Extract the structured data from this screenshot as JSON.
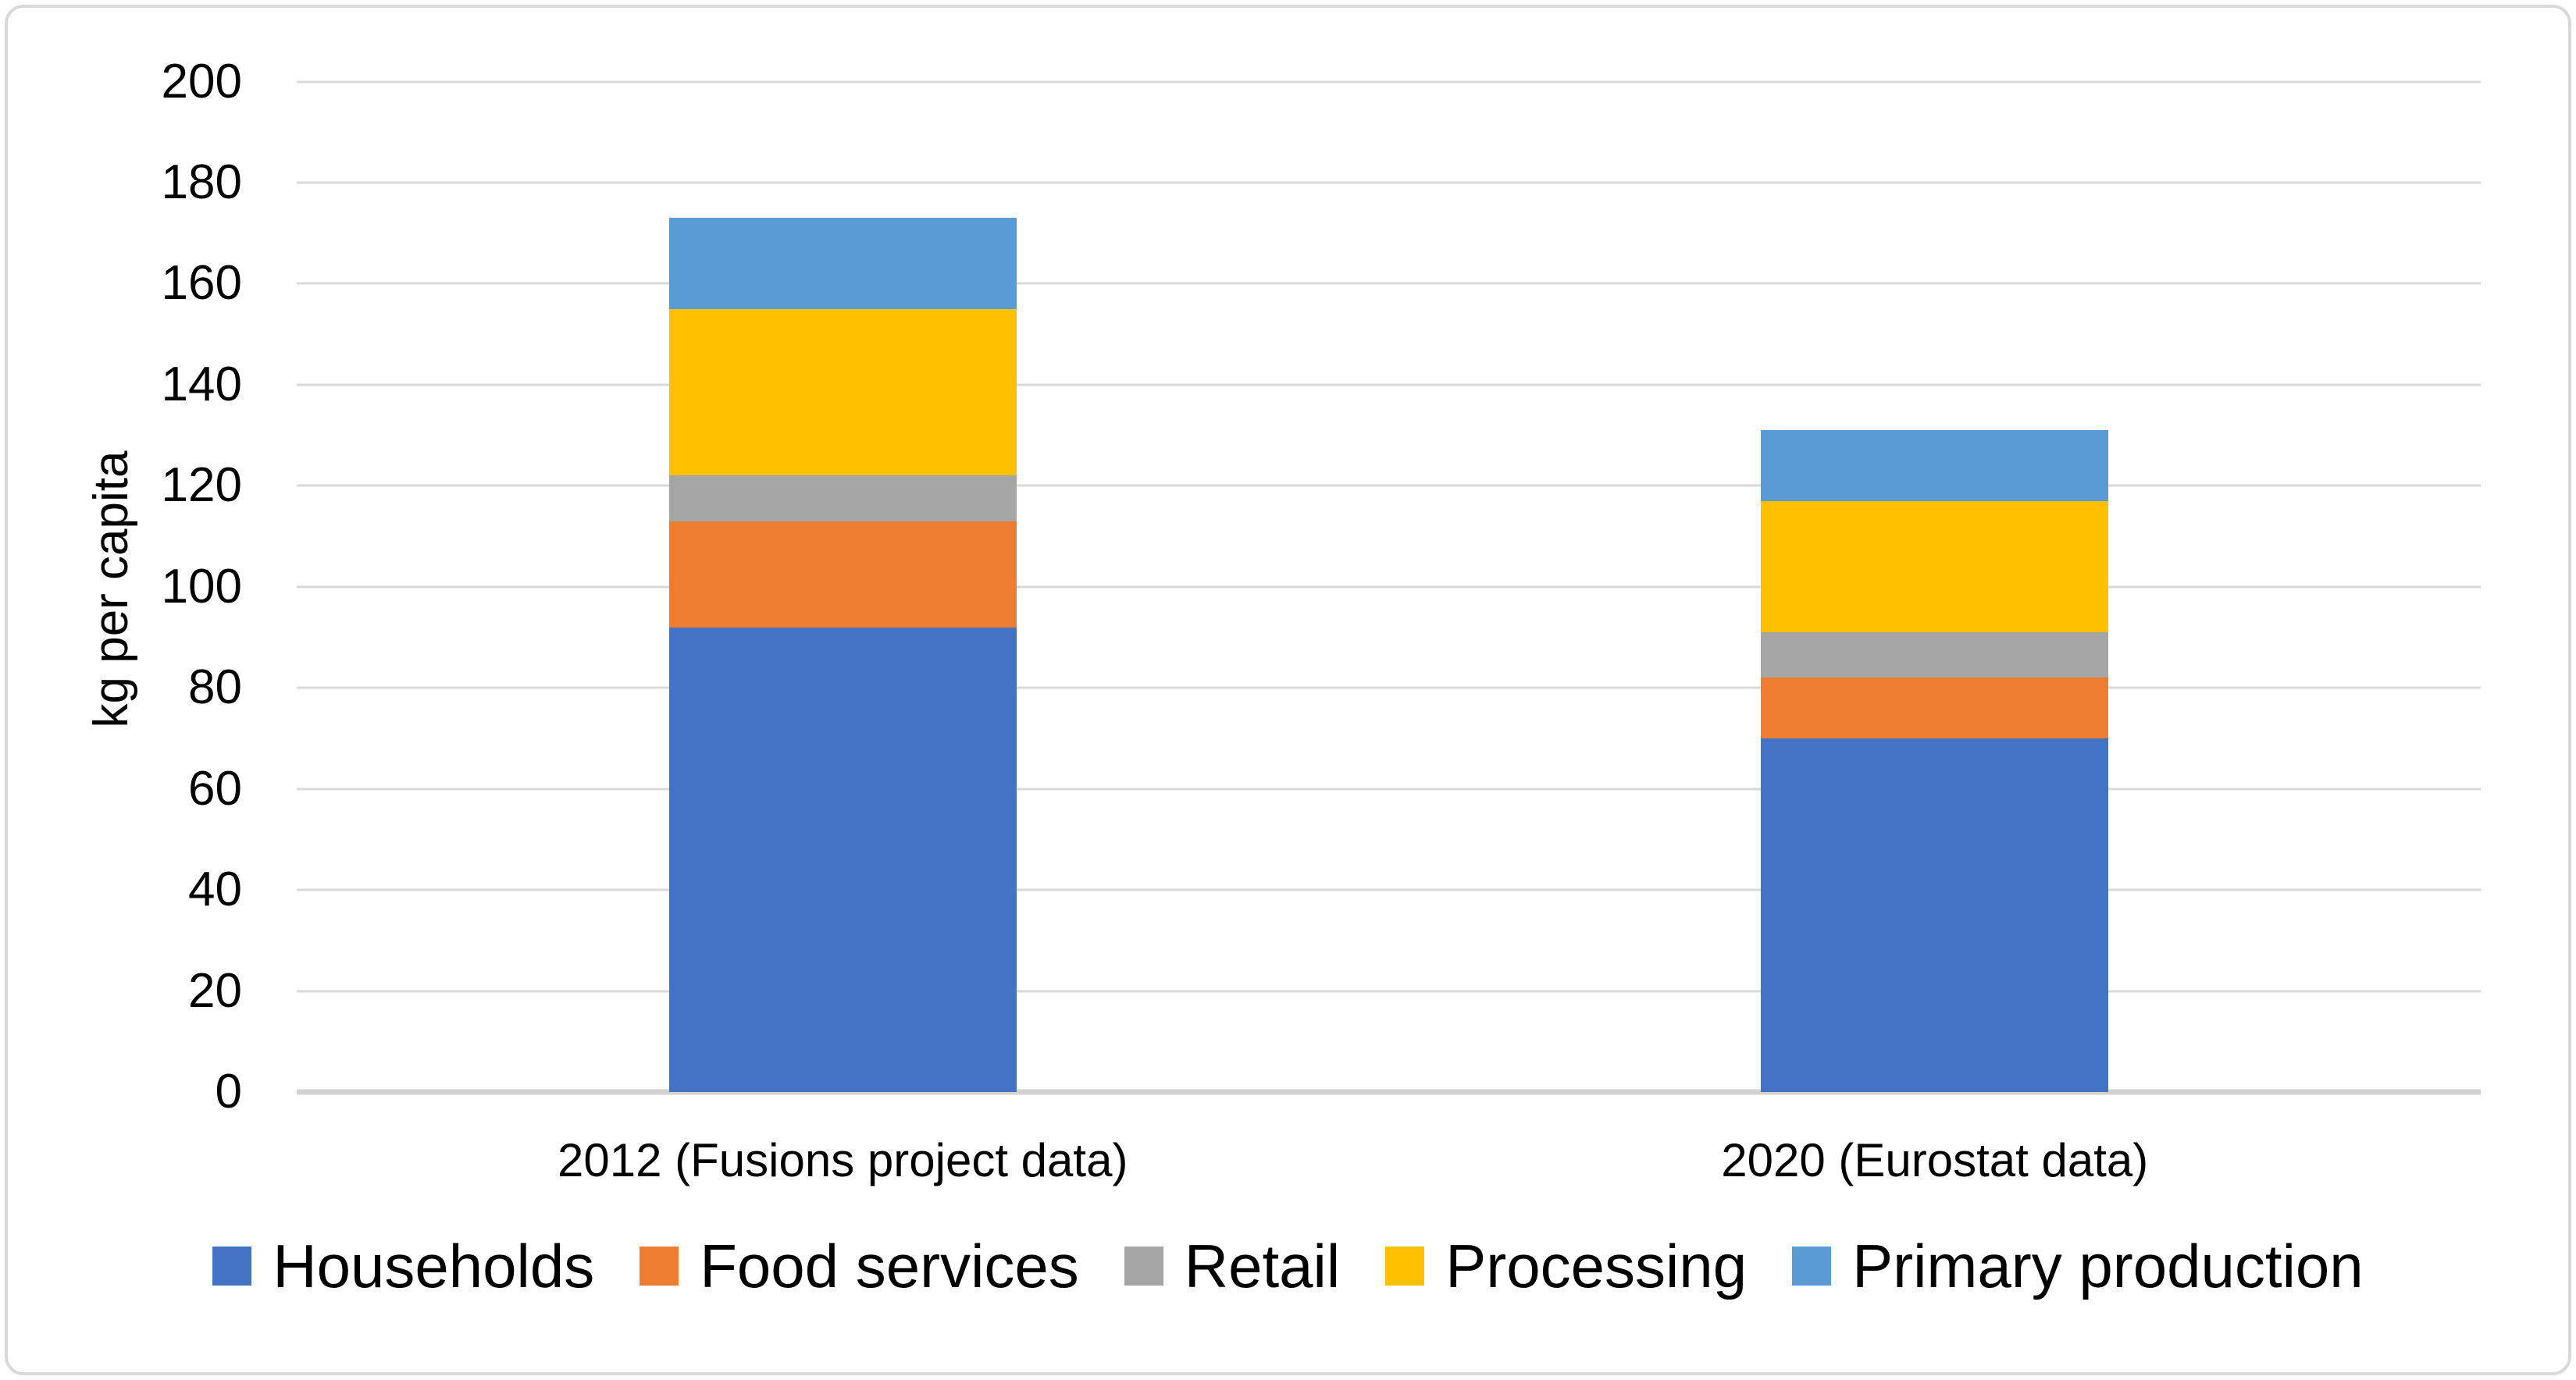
{
  "figure": {
    "background_color": "#FFFFFF",
    "border_color": "#D9D9D9"
  },
  "y_axis": {
    "title": "kg per capita",
    "min": 0,
    "max": 200,
    "tick_step": 20,
    "tick_labels": [
      "0",
      "20",
      "40",
      "60",
      "80",
      "100",
      "120",
      "140",
      "160",
      "180",
      "200"
    ],
    "gridline_color": "#D9D9D9",
    "axis_line_color": "#D2D2D2",
    "text_color": "#000000"
  },
  "chart_data": {
    "type": "bar",
    "stacked": true,
    "title": "",
    "xlabel": "",
    "ylabel": "kg per capita",
    "ylim": [
      0,
      200
    ],
    "grid": true,
    "legend_position": "bottom",
    "categories": [
      "2012 (Fusions project data)",
      "2020 (Eurostat data)"
    ],
    "series": [
      {
        "name": "Households",
        "color": "#4472C4",
        "values": [
          92,
          70
        ]
      },
      {
        "name": "Food services",
        "color": "#ED7D31",
        "values": [
          21,
          12
        ]
      },
      {
        "name": "Retail",
        "color": "#A5A5A5",
        "values": [
          9,
          9
        ]
      },
      {
        "name": "Processing",
        "color": "#FFC000",
        "values": [
          33,
          26
        ]
      },
      {
        "name": "Primary production",
        "color": "#5B9BD5",
        "values": [
          18,
          14
        ]
      }
    ],
    "stack_totals": [
      173,
      131
    ]
  }
}
